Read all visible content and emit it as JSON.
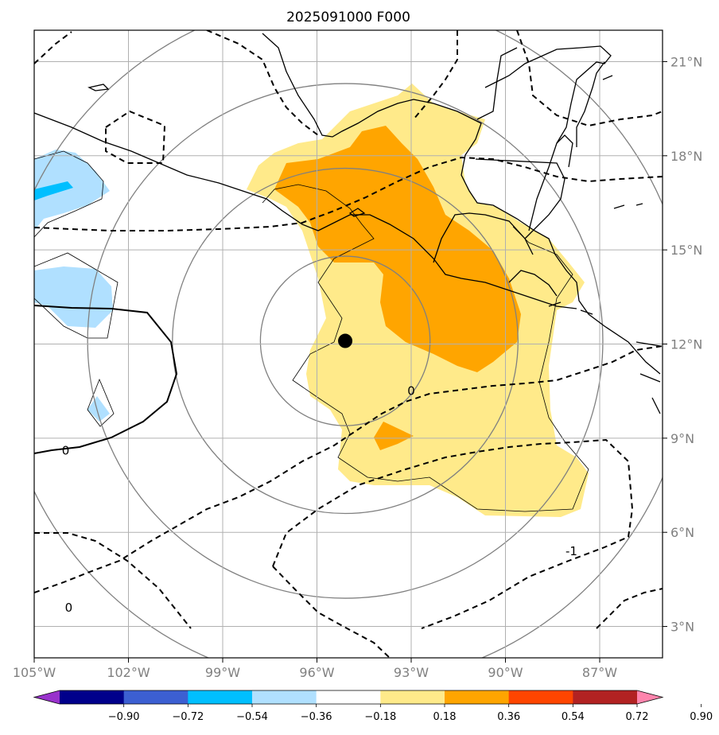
{
  "title": "2025091000 F000",
  "map": {
    "lon_range": [
      -105,
      -85
    ],
    "lat_range": [
      2,
      22
    ],
    "x_ticks": [
      {
        "lon": -105,
        "label": "105°W"
      },
      {
        "lon": -102,
        "label": "102°W"
      },
      {
        "lon": -99,
        "label": "99°W"
      },
      {
        "lon": -96,
        "label": "96°W"
      },
      {
        "lon": -93,
        "label": "93°W"
      },
      {
        "lon": -90,
        "label": "90°W"
      },
      {
        "lon": -87,
        "label": "87°W"
      }
    ],
    "y_ticks": [
      {
        "lat": 21,
        "label": "21°N"
      },
      {
        "lat": 18,
        "label": "18°N"
      },
      {
        "lat": 15,
        "label": "15°N"
      },
      {
        "lat": 12,
        "label": "12°N"
      },
      {
        "lat": 9,
        "label": "9°N"
      },
      {
        "lat": 6,
        "label": "6°N"
      },
      {
        "lat": 3,
        "label": "3°N"
      }
    ],
    "storm_center": {
      "lon": -95.1,
      "lat": 12.1
    },
    "range_rings_deg": [
      2.7,
      5.5,
      8.2,
      11.0
    ],
    "contour_labels": [
      {
        "text": "0",
        "lon": -104.0,
        "lat": 8.6
      },
      {
        "text": "0",
        "lon": -103.9,
        "lat": 3.6
      },
      {
        "text": "0",
        "lon": -93.0,
        "lat": 10.5
      },
      {
        "text": "-1",
        "lon": -87.9,
        "lat": 5.4
      }
    ]
  },
  "colorbar": {
    "colors": [
      "#9932cc",
      "#00008b",
      "#3c5fd2",
      "#00bfff",
      "#b0e0ff",
      "#ffffff",
      "#ffea8a",
      "#ffa500",
      "#ff4500",
      "#b22222",
      "#ff85ad"
    ],
    "tick_labels": [
      "−0.90",
      "−0.72",
      "−0.54",
      "−0.36",
      "−0.18",
      "0.18",
      "0.36",
      "0.54",
      "0.72",
      "0.90"
    ]
  }
}
